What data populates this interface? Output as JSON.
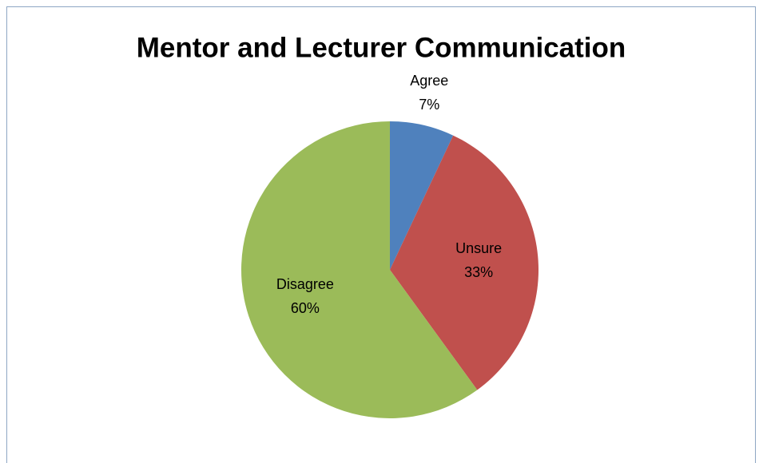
{
  "chart_data": {
    "type": "pie",
    "title": "Mentor and Lecturer Communication",
    "categories": [
      "Agree",
      "Unsure",
      "Disagree"
    ],
    "values": [
      7,
      33,
      60
    ],
    "value_labels": [
      "7%",
      "33%",
      "60%"
    ],
    "colors": [
      "#4f81bd",
      "#c0504d",
      "#9bbb59"
    ]
  }
}
